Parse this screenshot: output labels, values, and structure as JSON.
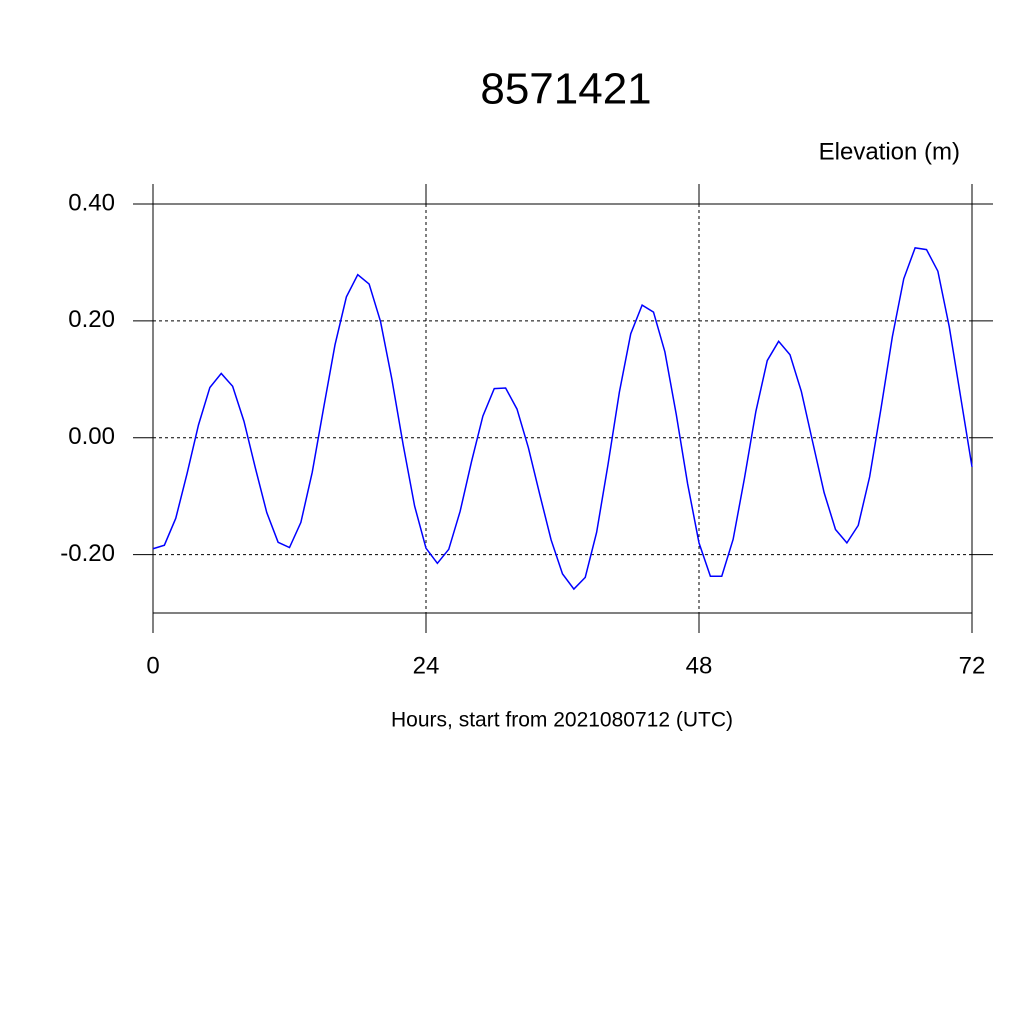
{
  "chart_data": {
    "type": "line",
    "title": "8571421",
    "y_label": "Elevation (m)",
    "x_label": "Hours, start from 2021080712 (UTC)",
    "x": [
      0,
      1,
      2,
      3,
      4,
      5,
      6,
      7,
      8,
      9,
      10,
      11,
      12,
      13,
      14,
      15,
      16,
      17,
      18,
      19,
      20,
      21,
      22,
      23,
      24,
      25,
      26,
      27,
      28,
      29,
      30,
      31,
      32,
      33,
      34,
      35,
      36,
      37,
      38,
      39,
      40,
      41,
      42,
      43,
      44,
      45,
      46,
      47,
      48,
      49,
      50,
      51,
      52,
      53,
      54,
      55,
      56,
      57,
      58,
      59,
      60,
      61,
      62,
      63,
      64,
      65,
      66,
      67,
      68,
      69,
      70,
      71,
      72
    ],
    "series": [
      {
        "name": "Elevation",
        "color": "#0000ff",
        "values": [
          -0.19,
          -0.184,
          -0.138,
          -0.061,
          0.022,
          0.086,
          0.11,
          0.088,
          0.028,
          -0.052,
          -0.128,
          -0.179,
          -0.188,
          -0.145,
          -0.059,
          0.051,
          0.159,
          0.241,
          0.279,
          0.263,
          0.199,
          0.1,
          -0.013,
          -0.117,
          -0.189,
          -0.215,
          -0.191,
          -0.126,
          -0.041,
          0.037,
          0.084,
          0.085,
          0.049,
          -0.017,
          -0.097,
          -0.175,
          -0.233,
          -0.259,
          -0.239,
          -0.162,
          -0.046,
          0.078,
          0.178,
          0.227,
          0.215,
          0.147,
          0.04,
          -0.079,
          -0.18,
          -0.237,
          -0.237,
          -0.174,
          -0.069,
          0.045,
          0.132,
          0.165,
          0.142,
          0.079,
          -0.008,
          -0.094,
          -0.157,
          -0.18,
          -0.15,
          -0.067,
          0.05,
          0.173,
          0.272,
          0.325,
          0.322,
          0.285,
          0.19,
          0.07,
          -0.05
        ]
      }
    ],
    "xlim": [
      0,
      72
    ],
    "xticks": [
      0,
      24,
      48,
      72
    ],
    "ylim": [
      -0.3,
      0.4
    ],
    "yticks": [
      {
        "value": 0.4,
        "label": "0.40"
      },
      {
        "value": 0.2,
        "label": "0.20"
      },
      {
        "value": 0,
        "label": "0.00"
      },
      {
        "value": -0.2,
        "label": "-0.20"
      }
    ],
    "grid": true
  }
}
